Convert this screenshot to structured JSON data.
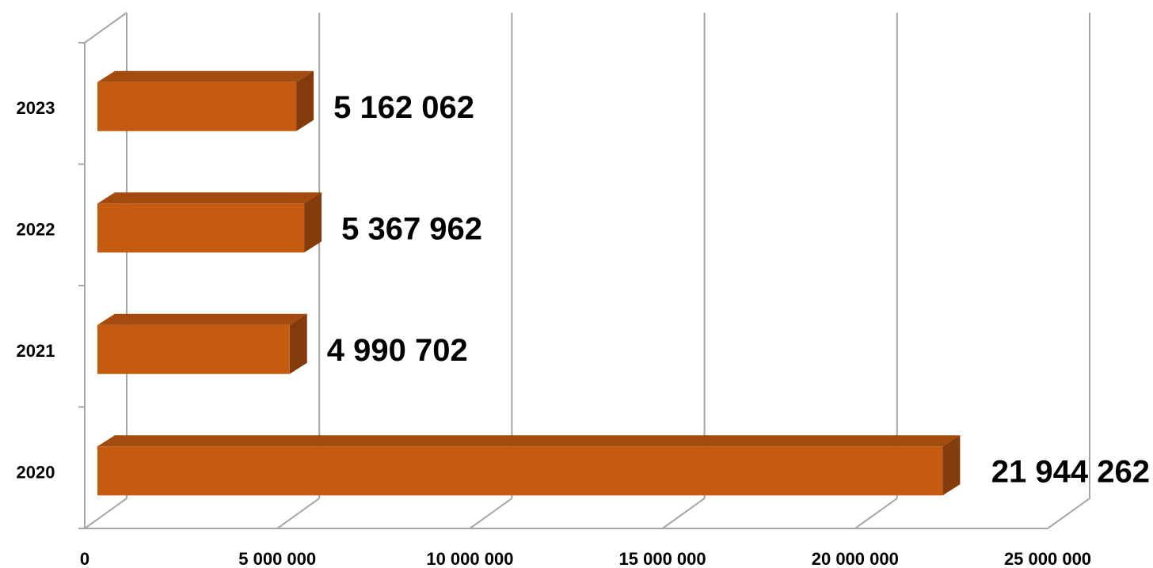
{
  "chart_data": {
    "type": "bar",
    "orientation": "horizontal",
    "style": "3d",
    "categories": [
      "2020",
      "2021",
      "2022",
      "2023"
    ],
    "values": [
      21944262,
      4990702,
      5367962,
      5162062
    ],
    "data_labels": [
      "21 944 262",
      "4 990 702",
      "5 367 962",
      "5 162 062"
    ],
    "x_ticks": [
      0,
      5000000,
      10000000,
      15000000,
      20000000,
      25000000
    ],
    "x_tick_labels": [
      "0",
      "5 000 000",
      "10 000 000",
      "15 000 000",
      "20 000 000",
      "25 000 000"
    ],
    "xlim": [
      0,
      25000000
    ],
    "title": "",
    "xlabel": "",
    "ylabel": "",
    "grid": true,
    "legend": "none",
    "colors": {
      "bar_front": "#C55A11",
      "bar_top": "#A34A0E",
      "bar_side": "#843C0C",
      "grid": "#A6A6A6",
      "text": "#000000"
    }
  }
}
